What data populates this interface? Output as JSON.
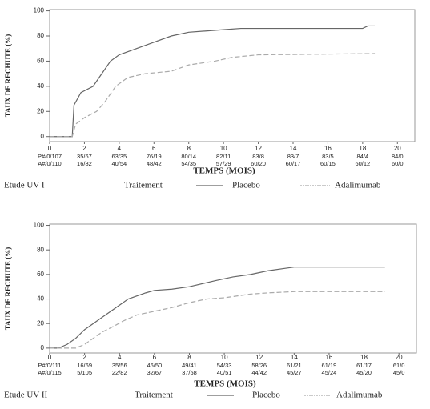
{
  "chart_data": [
    {
      "type": "line",
      "y_label": "TAUX DE RECHUTE (%)",
      "x_label": "TEMPS (MOIS)",
      "study": "Etude UV I",
      "legend_title": "Traitement",
      "xlim": [
        0,
        21
      ],
      "ylim": [
        -4,
        101
      ],
      "xticks": [
        0,
        2,
        4,
        6,
        8,
        10,
        12,
        14,
        16,
        18,
        20
      ],
      "yticks": [
        0,
        20,
        40,
        60,
        80,
        100
      ],
      "at_risk": [
        [
          "P#/0/107",
          "35/67",
          "63/35",
          "76/19",
          "80/14",
          "82/11",
          "83/8",
          "83/7",
          "83/5",
          "84/4",
          "84/0"
        ],
        [
          "A#/0/110",
          "16/82",
          "40/54",
          "48/42",
          "54/35",
          "57/29",
          "60/20",
          "60/17",
          "60/15",
          "60/12",
          "60/0"
        ]
      ],
      "series": [
        {
          "name": "Placebo",
          "color": "#666666",
          "style": "solid",
          "x": [
            0,
            1.3,
            1.4,
            1.8,
            2.5,
            3,
            3.5,
            4,
            5,
            6,
            7,
            8,
            9,
            10,
            11,
            18,
            18.3,
            18.7
          ],
          "values": [
            0,
            0,
            25,
            35,
            40,
            50,
            60,
            65,
            70,
            75,
            80,
            83,
            84,
            85,
            86,
            86,
            88,
            88
          ]
        },
        {
          "name": "Adalimumab",
          "color": "#aaaaaa",
          "style": "dashed",
          "x": [
            0,
            1.3,
            1.5,
            2,
            2.7,
            3.2,
            3.8,
            4.5,
            5.5,
            7,
            8,
            9.5,
            10.5,
            12,
            18.7
          ],
          "values": [
            0,
            0,
            10,
            15,
            20,
            28,
            40,
            47,
            50,
            52,
            57,
            60,
            63,
            65,
            66
          ]
        }
      ]
    },
    {
      "type": "line",
      "y_label": "TAUX DE RECHUTE (%)",
      "x_label": "TEMPS (MOIS)",
      "study": "Etude UV II",
      "legend_title": "Traitement",
      "xlim": [
        0,
        21
      ],
      "ylim": [
        -4,
        101
      ],
      "xticks": [
        0,
        2,
        4,
        6,
        8,
        10,
        12,
        14,
        16,
        18,
        20
      ],
      "yticks": [
        0,
        20,
        40,
        60,
        80,
        100
      ],
      "at_risk": [
        [
          "P#/0/111",
          "16/69",
          "35/56",
          "46/50",
          "49/41",
          "54/33",
          "58/26",
          "61/21",
          "61/19",
          "61/17",
          "61/0"
        ],
        [
          "A#/0/115",
          "5/105",
          "22/82",
          "32/67",
          "37/58",
          "40/51",
          "44/42",
          "45/27",
          "45/24",
          "45/20",
          "45/0"
        ]
      ],
      "series": [
        {
          "name": "Placebo",
          "color": "#666666",
          "style": "solid",
          "x": [
            0,
            0.5,
            1,
            1.5,
            2,
            2.5,
            3,
            3.5,
            4,
            4.5,
            5.5,
            6,
            7,
            8,
            9.5,
            10.5,
            11.5,
            12.5,
            13.5,
            14,
            19.2
          ],
          "values": [
            0,
            0,
            3,
            8,
            15,
            20,
            25,
            30,
            35,
            40,
            45,
            47,
            48,
            50,
            55,
            58,
            60,
            63,
            65,
            66,
            66
          ]
        },
        {
          "name": "Adalimumab",
          "color": "#aaaaaa",
          "style": "dashed",
          "x": [
            0,
            1.5,
            2,
            2.5,
            3,
            3.7,
            4.2,
            5,
            6,
            7,
            8,
            9,
            10,
            11.5,
            12.5,
            14,
            19.2
          ],
          "values": [
            0,
            0,
            3,
            8,
            13,
            18,
            22,
            27,
            30,
            33,
            37,
            40,
            41,
            44,
            45,
            46,
            46
          ]
        }
      ]
    }
  ]
}
